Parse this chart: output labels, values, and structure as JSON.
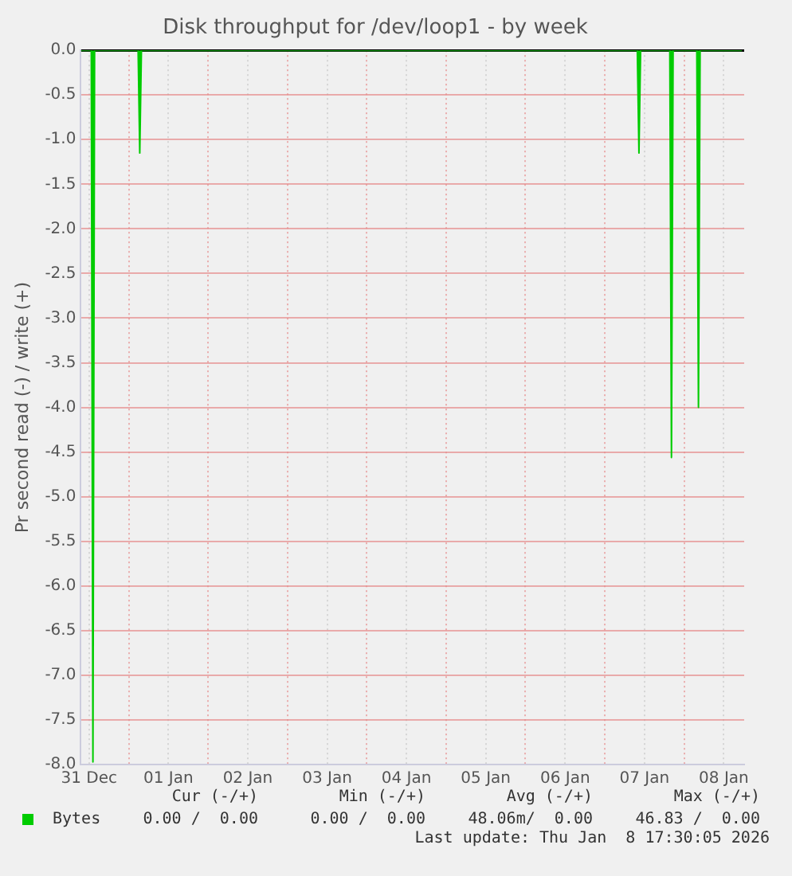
{
  "chart_data": {
    "type": "area",
    "title": "Disk throughput for /dev/loop1 - by week",
    "ylabel": "Pr second read (-) / write (+)",
    "x": [
      "2025-12-31T09:30",
      "2025-12-31T12:40",
      "2025-12-31T13:10",
      "2025-12-31T13:40",
      "2026-01-01T02:50",
      "2026-01-01T03:20",
      "2026-01-01T03:50",
      "2026-01-07T09:50",
      "2026-01-07T10:20",
      "2026-01-07T10:50",
      "2026-01-07T19:40",
      "2026-01-07T20:10",
      "2026-01-07T20:40",
      "2026-01-08T03:50",
      "2026-01-08T04:20",
      "2026-01-08T04:50",
      "2026-01-08T17:30"
    ],
    "series": [
      {
        "name": "Bytes",
        "color": "#00cc00",
        "values": [
          0,
          0,
          -7.97,
          0,
          0,
          -1.15,
          0,
          0,
          -1.15,
          0,
          0,
          -4.56,
          0,
          0,
          -4.0,
          0,
          0
        ]
      }
    ],
    "xlim": [
      "2025-12-31T09:30",
      "2026-01-08T18:10"
    ],
    "xticks": [
      {
        "value": "2025-12-31T12:00",
        "label": "31 Dec"
      },
      {
        "value": "2026-01-01T00:00",
        "label": null
      },
      {
        "value": "2026-01-01T12:00",
        "label": "01 Jan"
      },
      {
        "value": "2026-01-02T00:00",
        "label": null
      },
      {
        "value": "2026-01-02T12:00",
        "label": "02 Jan"
      },
      {
        "value": "2026-01-03T00:00",
        "label": null
      },
      {
        "value": "2026-01-03T12:00",
        "label": "03 Jan"
      },
      {
        "value": "2026-01-04T00:00",
        "label": null
      },
      {
        "value": "2026-01-04T12:00",
        "label": "04 Jan"
      },
      {
        "value": "2026-01-05T00:00",
        "label": null
      },
      {
        "value": "2026-01-05T12:00",
        "label": "05 Jan"
      },
      {
        "value": "2026-01-06T00:00",
        "label": null
      },
      {
        "value": "2026-01-06T12:00",
        "label": "06 Jan"
      },
      {
        "value": "2026-01-07T00:00",
        "label": null
      },
      {
        "value": "2026-01-07T12:00",
        "label": "07 Jan"
      },
      {
        "value": "2026-01-08T00:00",
        "label": null
      },
      {
        "value": "2026-01-08T12:00",
        "label": "08 Jan"
      }
    ],
    "ylim": [
      -8,
      0
    ],
    "yticks": [
      {
        "value": -8,
        "label": "-8.0"
      },
      -7.5,
      {
        "value": -7,
        "label": "-7.0"
      },
      -6.5,
      {
        "value": -6,
        "label": "-6.0"
      },
      -5.5,
      {
        "value": -5,
        "label": "-5.0"
      },
      -4.5,
      {
        "value": -4,
        "label": "-4.0"
      },
      -3.5,
      {
        "value": -3,
        "label": "-3.0"
      },
      -2.5,
      {
        "value": -2,
        "label": "-2.0"
      },
      -1.5,
      {
        "value": -1,
        "label": "-1.0"
      },
      -0.5,
      {
        "value": 0,
        "label": "0.0"
      }
    ],
    "grid": true,
    "legend": "bottom left",
    "annotations": [
      "Cur (-/+)",
      "Min (-/+)",
      "Avg (-/+)",
      "Max (-/+)",
      "0.00 /  0.00",
      "0.00 /  0.00",
      "48.06m/  0.00",
      "46.83 /  0.00",
      "Last update: Thu Jan  8 17:30:05 2026"
    ]
  }
}
